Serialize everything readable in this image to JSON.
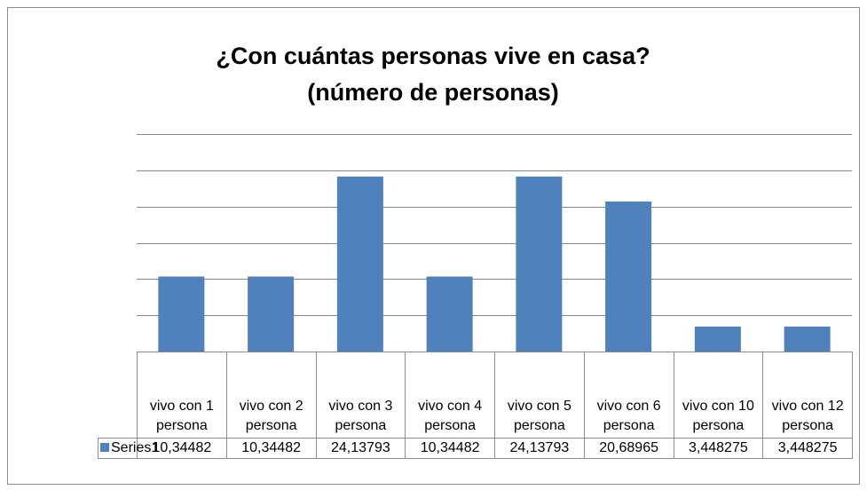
{
  "chart_data": {
    "type": "bar",
    "title": [
      "¿Con cuántas personas vive en casa?",
      "(número de personas)"
    ],
    "categories": [
      "vivo con 1 persona",
      "vivo con 2 persona",
      "vivo con 3 persona",
      "vivo con 4 persona",
      "vivo con 5 persona",
      "vivo con 6 persona",
      "vivo con 10 persona",
      "vivo con 12 persona"
    ],
    "series": [
      {
        "name": "Series1",
        "color": "#4f81bd",
        "values": [
          10.34482,
          10.34482,
          24.13793,
          10.34482,
          24.13793,
          20.68965,
          3.448275,
          3.448275
        ],
        "value_labels": [
          "10,34482",
          "10,34482",
          "24,13793",
          "10,34482",
          "24,13793",
          "20,68965",
          "3,448275",
          "3,448275"
        ]
      }
    ],
    "ylim": [
      0,
      30
    ],
    "yticks": [
      0,
      5,
      10,
      15,
      20,
      25,
      30
    ],
    "grid": true
  }
}
